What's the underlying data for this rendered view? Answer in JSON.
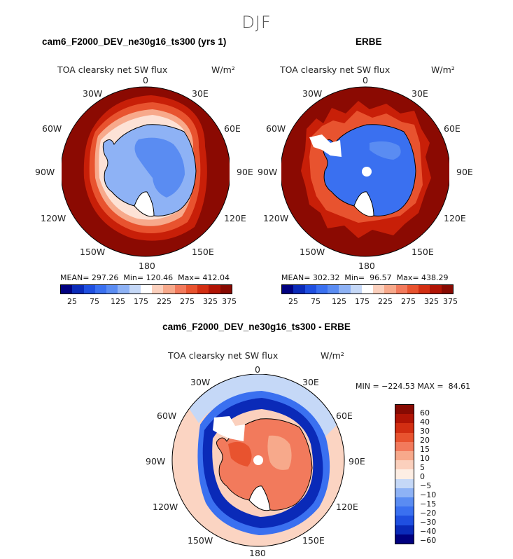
{
  "season": "DJF",
  "colors": {
    "abs_scale": [
      "#00007f",
      "#0a2ab8",
      "#1f4fe0",
      "#3a70f0",
      "#5a8cf2",
      "#8eb2f5",
      "#c5d8f7",
      "#ffffff",
      "#fbd0bd",
      "#f7a98b",
      "#f27a5c",
      "#e8532f",
      "#d22e12",
      "#b01405",
      "#870a02"
    ],
    "diff_scale": [
      "#00007f",
      "#0a2ab8",
      "#1f4fe0",
      "#3a70f0",
      "#5a8cf2",
      "#8eb2f5",
      "#c5d8f7",
      "#fdeee4",
      "#fbd0bd",
      "#f7a98b",
      "#f27a5c",
      "#e8532f",
      "#d22e12",
      "#b01405",
      "#870a02"
    ],
    "ocean_dark": "#8b0a02",
    "diff_ocean": "#fbd4c2"
  },
  "panels": {
    "model": {
      "title": "cam6_F2000_DEV_ne30g16_ts300 (yrs 1)",
      "variable": "TOA clearsky net SW flux",
      "units": "W/m²",
      "stats": "MEAN= 297.26  Min= 120.46  Max= 412.04"
    },
    "obs": {
      "title": "ERBE",
      "variable": "TOA clearsky net SW flux",
      "units": "W/m²",
      "stats": "MEAN= 302.32  Min=  96.57  Max= 438.29"
    },
    "diff": {
      "title": "cam6_F2000_DEV_ne30g16_ts300 - ERBE",
      "variable": "TOA clearsky net SW flux",
      "units": "W/m²",
      "stats": "MIN = −224.53 MAX =  84.61"
    }
  },
  "longitude_labels": [
    "0",
    "30E",
    "60E",
    "90E",
    "120E",
    "150E",
    "180",
    "150W",
    "120W",
    "90W",
    "60W",
    "30W"
  ],
  "colorbar_abs_ticks": [
    "25",
    "75",
    "125",
    "175",
    "225",
    "275",
    "325",
    "375"
  ],
  "colorbar_diff_ticks": [
    "60",
    "40",
    "30",
    "20",
    "15",
    "10",
    "5",
    "0",
    "−5",
    "−10",
    "−15",
    "−20",
    "−30",
    "−40",
    "−60"
  ]
}
